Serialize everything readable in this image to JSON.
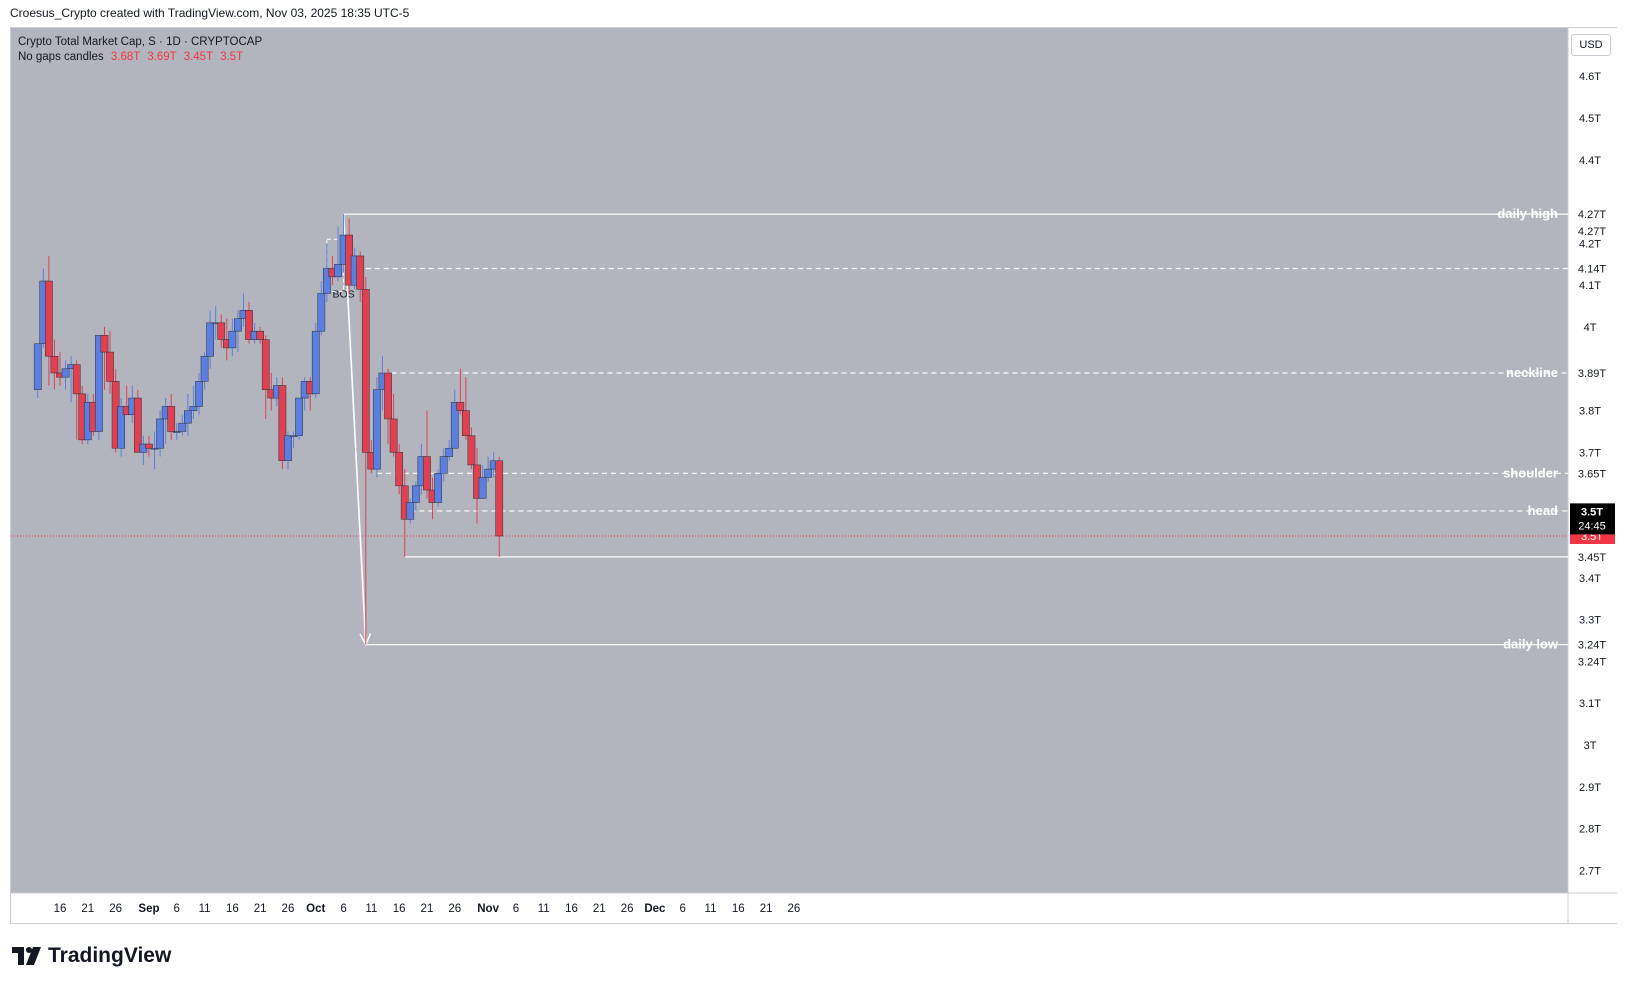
{
  "header": {
    "attribution": "Croesus_Crypto created with TradingView.com, Nov 03, 2025 18:35 UTC-5"
  },
  "legend": {
    "title": "Crypto Total Market Cap, S · 1D · CRYPTOCAP",
    "indicator": "No gaps candles",
    "values": [
      "3.68T",
      "3.69T",
      "3.45T",
      "3.5T"
    ]
  },
  "toolbar": {
    "currency": "USD"
  },
  "brand": {
    "name": "TradingView"
  },
  "colors": {
    "up": "#5b7fe0",
    "down": "#e04050",
    "background": "#b2b5be"
  },
  "chart_data": {
    "type": "candlestick",
    "y_unit": "T (USD)",
    "ylim": [
      2.65,
      4.68
    ],
    "y_ticks": [
      2.7,
      2.8,
      2.9,
      3.0,
      3.1,
      3.3,
      3.4,
      3.7,
      3.8,
      4.0,
      4.1,
      4.2,
      4.4,
      4.5,
      4.6
    ],
    "y_tick_labels": [
      "2.7T",
      "2.8T",
      "2.9T",
      "3T",
      "3.1T",
      "3.3T",
      "3.4T",
      "3.7T",
      "3.8T",
      "4T",
      "4.1T",
      "4.2T",
      "4.4T",
      "4.5T",
      "4.6T"
    ],
    "x_ticks": [
      {
        "date": "2025-08-16",
        "label": "16"
      },
      {
        "date": "2025-08-21",
        "label": "21"
      },
      {
        "date": "2025-08-26",
        "label": "26"
      },
      {
        "date": "2025-09-01",
        "label": "Sep"
      },
      {
        "date": "2025-09-06",
        "label": "6"
      },
      {
        "date": "2025-09-11",
        "label": "11"
      },
      {
        "date": "2025-09-16",
        "label": "16"
      },
      {
        "date": "2025-09-21",
        "label": "21"
      },
      {
        "date": "2025-09-26",
        "label": "26"
      },
      {
        "date": "2025-10-01",
        "label": "Oct"
      },
      {
        "date": "2025-10-06",
        "label": "6"
      },
      {
        "date": "2025-10-11",
        "label": "11"
      },
      {
        "date": "2025-10-16",
        "label": "16"
      },
      {
        "date": "2025-10-21",
        "label": "21"
      },
      {
        "date": "2025-10-26",
        "label": "26"
      },
      {
        "date": "2025-11-01",
        "label": "Nov"
      },
      {
        "date": "2025-11-06",
        "label": "6"
      },
      {
        "date": "2025-11-11",
        "label": "11"
      },
      {
        "date": "2025-11-16",
        "label": "16"
      },
      {
        "date": "2025-11-21",
        "label": "21"
      },
      {
        "date": "2025-11-26",
        "label": "26"
      },
      {
        "date": "2025-12-01",
        "label": "Dec"
      },
      {
        "date": "2025-12-06",
        "label": "6"
      },
      {
        "date": "2025-12-11",
        "label": "11"
      },
      {
        "date": "2025-12-16",
        "label": "16"
      },
      {
        "date": "2025-12-21",
        "label": "21"
      },
      {
        "date": "2025-12-26",
        "label": "26"
      }
    ],
    "candles": [
      {
        "d": "2025-08-12",
        "o": 3.85,
        "h": 3.96,
        "l": 3.83,
        "c": 3.96
      },
      {
        "d": "2025-08-13",
        "o": 3.96,
        "h": 4.14,
        "l": 3.95,
        "c": 4.11
      },
      {
        "d": "2025-08-14",
        "o": 4.11,
        "h": 4.17,
        "l": 3.86,
        "c": 3.93
      },
      {
        "d": "2025-08-15",
        "o": 3.93,
        "h": 3.97,
        "l": 3.85,
        "c": 3.89
      },
      {
        "d": "2025-08-16",
        "o": 3.89,
        "h": 3.94,
        "l": 3.86,
        "c": 3.88
      },
      {
        "d": "2025-08-17",
        "o": 3.88,
        "h": 3.92,
        "l": 3.85,
        "c": 3.9
      },
      {
        "d": "2025-08-18",
        "o": 3.9,
        "h": 3.93,
        "l": 3.82,
        "c": 3.91
      },
      {
        "d": "2025-08-19",
        "o": 3.91,
        "h": 3.92,
        "l": 3.73,
        "c": 3.84
      },
      {
        "d": "2025-08-20",
        "o": 3.84,
        "h": 3.86,
        "l": 3.72,
        "c": 3.73
      },
      {
        "d": "2025-08-21",
        "o": 3.73,
        "h": 3.84,
        "l": 3.72,
        "c": 3.82
      },
      {
        "d": "2025-08-22",
        "o": 3.82,
        "h": 3.84,
        "l": 3.74,
        "c": 3.75
      },
      {
        "d": "2025-08-23",
        "o": 3.75,
        "h": 3.97,
        "l": 3.73,
        "c": 3.98
      },
      {
        "d": "2025-08-24",
        "o": 3.98,
        "h": 4.0,
        "l": 3.85,
        "c": 3.94
      },
      {
        "d": "2025-08-25",
        "o": 3.94,
        "h": 3.99,
        "l": 3.84,
        "c": 3.87
      },
      {
        "d": "2025-08-26",
        "o": 3.87,
        "h": 3.9,
        "l": 3.7,
        "c": 3.71
      },
      {
        "d": "2025-08-27",
        "o": 3.71,
        "h": 3.83,
        "l": 3.69,
        "c": 3.81
      },
      {
        "d": "2025-08-28",
        "o": 3.81,
        "h": 3.86,
        "l": 3.79,
        "c": 3.79
      },
      {
        "d": "2025-08-29",
        "o": 3.79,
        "h": 3.86,
        "l": 3.77,
        "c": 3.83
      },
      {
        "d": "2025-08-30",
        "o": 3.83,
        "h": 3.85,
        "l": 3.71,
        "c": 3.7
      },
      {
        "d": "2025-08-31",
        "o": 3.7,
        "h": 3.74,
        "l": 3.67,
        "c": 3.72
      },
      {
        "d": "2025-09-01",
        "o": 3.72,
        "h": 3.74,
        "l": 3.69,
        "c": 3.71
      },
      {
        "d": "2025-09-02",
        "o": 3.71,
        "h": 3.75,
        "l": 3.66,
        "c": 3.71
      },
      {
        "d": "2025-09-03",
        "o": 3.71,
        "h": 3.8,
        "l": 3.69,
        "c": 3.78
      },
      {
        "d": "2025-09-04",
        "o": 3.78,
        "h": 3.83,
        "l": 3.72,
        "c": 3.81
      },
      {
        "d": "2025-09-05",
        "o": 3.81,
        "h": 3.84,
        "l": 3.73,
        "c": 3.75
      },
      {
        "d": "2025-09-06",
        "o": 3.75,
        "h": 3.77,
        "l": 3.73,
        "c": 3.75
      },
      {
        "d": "2025-09-07",
        "o": 3.75,
        "h": 3.79,
        "l": 3.74,
        "c": 3.77
      },
      {
        "d": "2025-09-08",
        "o": 3.77,
        "h": 3.84,
        "l": 3.74,
        "c": 3.8
      },
      {
        "d": "2025-09-09",
        "o": 3.8,
        "h": 3.86,
        "l": 3.78,
        "c": 3.81
      },
      {
        "d": "2025-09-10",
        "o": 3.81,
        "h": 3.89,
        "l": 3.79,
        "c": 3.87
      },
      {
        "d": "2025-09-11",
        "o": 3.87,
        "h": 3.94,
        "l": 3.85,
        "c": 3.93
      },
      {
        "d": "2025-09-12",
        "o": 3.93,
        "h": 4.04,
        "l": 3.9,
        "c": 4.01
      },
      {
        "d": "2025-09-13",
        "o": 4.01,
        "h": 4.05,
        "l": 3.97,
        "c": 4.01
      },
      {
        "d": "2025-09-14",
        "o": 4.01,
        "h": 4.03,
        "l": 3.95,
        "c": 3.97
      },
      {
        "d": "2025-09-15",
        "o": 3.97,
        "h": 4.02,
        "l": 3.92,
        "c": 3.95
      },
      {
        "d": "2025-09-16",
        "o": 3.95,
        "h": 4.02,
        "l": 3.93,
        "c": 3.99
      },
      {
        "d": "2025-09-17",
        "o": 3.99,
        "h": 4.04,
        "l": 3.94,
        "c": 4.02
      },
      {
        "d": "2025-09-18",
        "o": 4.02,
        "h": 4.08,
        "l": 4.0,
        "c": 4.04
      },
      {
        "d": "2025-09-19",
        "o": 4.04,
        "h": 4.06,
        "l": 3.96,
        "c": 3.97
      },
      {
        "d": "2025-09-20",
        "o": 3.97,
        "h": 4.01,
        "l": 3.96,
        "c": 3.99
      },
      {
        "d": "2025-09-21",
        "o": 3.99,
        "h": 4.0,
        "l": 3.96,
        "c": 3.97
      },
      {
        "d": "2025-09-22",
        "o": 3.97,
        "h": 3.98,
        "l": 3.78,
        "c": 3.85
      },
      {
        "d": "2025-09-23",
        "o": 3.85,
        "h": 3.89,
        "l": 3.8,
        "c": 3.83
      },
      {
        "d": "2025-09-24",
        "o": 3.83,
        "h": 3.88,
        "l": 3.81,
        "c": 3.86
      },
      {
        "d": "2025-09-25",
        "o": 3.86,
        "h": 3.88,
        "l": 3.66,
        "c": 3.68
      },
      {
        "d": "2025-09-26",
        "o": 3.68,
        "h": 3.75,
        "l": 3.66,
        "c": 3.74
      },
      {
        "d": "2025-09-27",
        "o": 3.74,
        "h": 3.75,
        "l": 3.71,
        "c": 3.74
      },
      {
        "d": "2025-09-28",
        "o": 3.74,
        "h": 3.83,
        "l": 3.73,
        "c": 3.83
      },
      {
        "d": "2025-09-29",
        "o": 3.83,
        "h": 3.88,
        "l": 3.8,
        "c": 3.87
      },
      {
        "d": "2025-09-30",
        "o": 3.87,
        "h": 3.88,
        "l": 3.8,
        "c": 3.84
      },
      {
        "d": "2025-10-01",
        "o": 3.84,
        "h": 4.01,
        "l": 3.83,
        "c": 3.99
      },
      {
        "d": "2025-10-02",
        "o": 3.99,
        "h": 4.11,
        "l": 3.98,
        "c": 4.08
      },
      {
        "d": "2025-10-03",
        "o": 4.08,
        "h": 4.2,
        "l": 4.06,
        "c": 4.14
      },
      {
        "d": "2025-10-04",
        "o": 4.14,
        "h": 4.17,
        "l": 4.1,
        "c": 4.12
      },
      {
        "d": "2025-10-05",
        "o": 4.12,
        "h": 4.24,
        "l": 4.11,
        "c": 4.15
      },
      {
        "d": "2025-10-06",
        "o": 4.15,
        "h": 4.27,
        "l": 4.13,
        "c": 4.22
      },
      {
        "d": "2025-10-07",
        "o": 4.22,
        "h": 4.26,
        "l": 4.08,
        "c": 4.1
      },
      {
        "d": "2025-10-08",
        "o": 4.1,
        "h": 4.19,
        "l": 4.09,
        "c": 4.17
      },
      {
        "d": "2025-10-09",
        "o": 4.17,
        "h": 4.18,
        "l": 4.06,
        "c": 4.09
      },
      {
        "d": "2025-10-10",
        "o": 4.09,
        "h": 4.12,
        "l": 3.24,
        "c": 3.7
      },
      {
        "d": "2025-10-11",
        "o": 3.7,
        "h": 3.73,
        "l": 3.65,
        "c": 3.66
      },
      {
        "d": "2025-10-12",
        "o": 3.66,
        "h": 3.88,
        "l": 3.64,
        "c": 3.85
      },
      {
        "d": "2025-10-13",
        "o": 3.85,
        "h": 3.93,
        "l": 3.8,
        "c": 3.89
      },
      {
        "d": "2025-10-14",
        "o": 3.89,
        "h": 3.9,
        "l": 3.72,
        "c": 3.78
      },
      {
        "d": "2025-10-15",
        "o": 3.78,
        "h": 3.84,
        "l": 3.69,
        "c": 3.7
      },
      {
        "d": "2025-10-16",
        "o": 3.7,
        "h": 3.72,
        "l": 3.6,
        "c": 3.62
      },
      {
        "d": "2025-10-17",
        "o": 3.62,
        "h": 3.66,
        "l": 3.45,
        "c": 3.54
      },
      {
        "d": "2025-10-18",
        "o": 3.54,
        "h": 3.59,
        "l": 3.53,
        "c": 3.58
      },
      {
        "d": "2025-10-19",
        "o": 3.58,
        "h": 3.63,
        "l": 3.56,
        "c": 3.62
      },
      {
        "d": "2025-10-20",
        "o": 3.62,
        "h": 3.72,
        "l": 3.6,
        "c": 3.69
      },
      {
        "d": "2025-10-21",
        "o": 3.69,
        "h": 3.8,
        "l": 3.59,
        "c": 3.61
      },
      {
        "d": "2025-10-22",
        "o": 3.61,
        "h": 3.64,
        "l": 3.54,
        "c": 3.58
      },
      {
        "d": "2025-10-23",
        "o": 3.58,
        "h": 3.66,
        "l": 3.57,
        "c": 3.65
      },
      {
        "d": "2025-10-24",
        "o": 3.65,
        "h": 3.71,
        "l": 3.63,
        "c": 3.69
      },
      {
        "d": "2025-10-25",
        "o": 3.69,
        "h": 3.73,
        "l": 3.68,
        "c": 3.71
      },
      {
        "d": "2025-10-26",
        "o": 3.71,
        "h": 3.85,
        "l": 3.71,
        "c": 3.82
      },
      {
        "d": "2025-10-27",
        "o": 3.82,
        "h": 3.9,
        "l": 3.79,
        "c": 3.8
      },
      {
        "d": "2025-10-28",
        "o": 3.8,
        "h": 3.88,
        "l": 3.73,
        "c": 3.74
      },
      {
        "d": "2025-10-29",
        "o": 3.74,
        "h": 3.76,
        "l": 3.66,
        "c": 3.67
      },
      {
        "d": "2025-10-30",
        "o": 3.67,
        "h": 3.71,
        "l": 3.53,
        "c": 3.59
      },
      {
        "d": "2025-10-31",
        "o": 3.59,
        "h": 3.67,
        "l": 3.59,
        "c": 3.64
      },
      {
        "d": "2025-11-01",
        "o": 3.64,
        "h": 3.69,
        "l": 3.63,
        "c": 3.66
      },
      {
        "d": "2025-11-02",
        "o": 3.66,
        "h": 3.7,
        "l": 3.64,
        "c": 3.68
      },
      {
        "d": "2025-11-03",
        "o": 3.68,
        "h": 3.69,
        "l": 3.45,
        "c": 3.5
      }
    ],
    "levels": [
      {
        "name": "daily high",
        "value": 4.27,
        "style": "solid",
        "start": "2025-10-06"
      },
      {
        "name": "",
        "value": 4.14,
        "style": "dashed",
        "start": "2025-10-10"
      },
      {
        "name": "neckline",
        "value": 3.89,
        "style": "dashed",
        "start": "2025-10-13"
      },
      {
        "name": "shoulder",
        "value": 3.65,
        "style": "dashed",
        "start": "2025-10-12"
      },
      {
        "name": "head",
        "value": 3.56,
        "style": "dashed",
        "start": "2025-10-18"
      },
      {
        "name": "",
        "value": 3.45,
        "style": "solid",
        "start": "2025-10-17"
      },
      {
        "name": "daily low",
        "value": 3.24,
        "style": "solid",
        "start": "2025-10-10"
      }
    ],
    "price_line": {
      "value": 3.5,
      "color": "#f23645"
    },
    "annotations": [
      {
        "type": "label",
        "text": "BOS",
        "d": "2025-10-06",
        "y": 4.08
      },
      {
        "type": "dashed-box",
        "d1": "2025-10-03",
        "d2": "2025-10-06",
        "y1": 4.085,
        "y2": 4.21
      },
      {
        "type": "arrow",
        "d1": "2025-10-06",
        "y1": 4.27,
        "d2": "2025-10-10",
        "y2": 3.24
      }
    ],
    "axis_labels": [
      {
        "text": "4.27T",
        "value": 4.27,
        "bg": "#ffffff",
        "fg": "#131722"
      },
      {
        "text": "4.27T",
        "value": 4.27,
        "bg": "#ffffff",
        "fg": "#131722",
        "offset": 1
      },
      {
        "text": "4.14T",
        "value": 4.14,
        "bg": "#ffffff",
        "fg": "#131722"
      },
      {
        "text": "3.89T",
        "value": 3.89,
        "bg": "#ffffff",
        "fg": "#131722"
      },
      {
        "text": "3.65T",
        "value": 3.65,
        "bg": "#ffffff",
        "fg": "#131722"
      },
      {
        "text": "3.56T",
        "value": 3.56,
        "bg": "#ffffff",
        "fg": "#131722"
      },
      {
        "text": "3.5T",
        "value": 3.5,
        "bg": "#f23645",
        "fg": "#ffffff"
      },
      {
        "text": "3.45T",
        "value": 3.45,
        "bg": "#ffffff",
        "fg": "#131722"
      },
      {
        "text": "3.24T",
        "value": 3.24,
        "bg": "#ffffff",
        "fg": "#131722"
      },
      {
        "text": "3.24T",
        "value": 3.24,
        "bg": "#ffffff",
        "fg": "#131722",
        "offset": 1
      }
    ],
    "last_price_badge": {
      "price": "3.5T",
      "countdown": "24:45",
      "bg": "#000000",
      "fg": "#ffffff"
    }
  }
}
